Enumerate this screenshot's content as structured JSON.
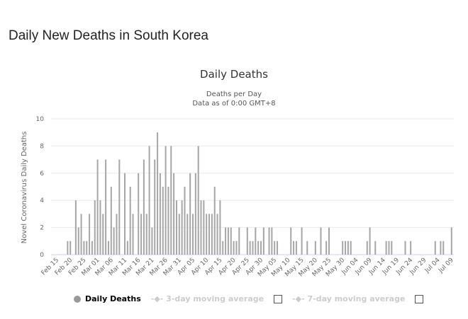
{
  "page_title": "Daily New Deaths in South Korea",
  "chart_data": {
    "type": "bar",
    "title": "Daily Deaths",
    "subtitle": [
      "Deaths per Day",
      "Data as of 0:00 GMT+8"
    ],
    "ylabel": "Novel Coronavirus Daily Deaths",
    "xlabel": "",
    "ylim": [
      0,
      10
    ],
    "yticks": [
      0,
      2,
      4,
      6,
      8,
      10
    ],
    "grid": true,
    "legend_position": "bottom",
    "bar_color": "#a6a6a6",
    "xtick_labels": [
      "Feb 15",
      "Feb 20",
      "Feb 25",
      "Mar 01",
      "Mar 06",
      "Mar 11",
      "Mar 16",
      "Mar 21",
      "Mar 26",
      "Mar 31",
      "Apr 05",
      "Apr 10",
      "Apr 15",
      "Apr 20",
      "Apr 25",
      "Apr 30",
      "May 05",
      "May 10",
      "May 15",
      "May 20",
      "May 25",
      "May 30",
      "Jun 04",
      "Jun 09",
      "Jun 14",
      "Jun 19",
      "Jun 24",
      "Jun 29",
      "Jul 04",
      "Jul 09"
    ],
    "categories": [
      "Feb 15",
      "Feb 16",
      "Feb 17",
      "Feb 18",
      "Feb 19",
      "Feb 20",
      "Feb 21",
      "Feb 22",
      "Feb 23",
      "Feb 24",
      "Feb 25",
      "Feb 26",
      "Feb 27",
      "Feb 28",
      "Feb 29",
      "Mar 01",
      "Mar 02",
      "Mar 03",
      "Mar 04",
      "Mar 05",
      "Mar 06",
      "Mar 07",
      "Mar 08",
      "Mar 09",
      "Mar 10",
      "Mar 11",
      "Mar 12",
      "Mar 13",
      "Mar 14",
      "Mar 15",
      "Mar 16",
      "Mar 17",
      "Mar 18",
      "Mar 19",
      "Mar 20",
      "Mar 21",
      "Mar 22",
      "Mar 23",
      "Mar 24",
      "Mar 25",
      "Mar 26",
      "Mar 27",
      "Mar 28",
      "Mar 29",
      "Mar 30",
      "Mar 31",
      "Apr 01",
      "Apr 02",
      "Apr 03",
      "Apr 04",
      "Apr 05",
      "Apr 06",
      "Apr 07",
      "Apr 08",
      "Apr 09",
      "Apr 10",
      "Apr 11",
      "Apr 12",
      "Apr 13",
      "Apr 14",
      "Apr 15",
      "Apr 16",
      "Apr 17",
      "Apr 18",
      "Apr 19",
      "Apr 20",
      "Apr 21",
      "Apr 22",
      "Apr 23",
      "Apr 24",
      "Apr 25",
      "Apr 26",
      "Apr 27",
      "Apr 28",
      "Apr 29",
      "Apr 30",
      "May 01",
      "May 02",
      "May 03",
      "May 04",
      "May 05",
      "May 06",
      "May 07",
      "May 08",
      "May 09",
      "May 10",
      "May 11",
      "May 12",
      "May 13",
      "May 14",
      "May 15",
      "May 16",
      "May 17",
      "May 18",
      "May 19",
      "May 20",
      "May 21",
      "May 22",
      "May 23",
      "May 24",
      "May 25",
      "May 26",
      "May 27",
      "May 28",
      "May 29",
      "May 30",
      "May 31",
      "Jun 01",
      "Jun 02",
      "Jun 03",
      "Jun 04",
      "Jun 05",
      "Jun 06",
      "Jun 07",
      "Jun 08",
      "Jun 09",
      "Jun 10",
      "Jun 11",
      "Jun 12",
      "Jun 13",
      "Jun 14",
      "Jun 15",
      "Jun 16",
      "Jun 17",
      "Jun 18",
      "Jun 19",
      "Jun 20",
      "Jun 21",
      "Jun 22",
      "Jun 23",
      "Jun 24",
      "Jun 25",
      "Jun 26",
      "Jun 27",
      "Jun 28",
      "Jun 29",
      "Jun 30",
      "Jul 01",
      "Jul 02",
      "Jul 03",
      "Jul 04",
      "Jul 05",
      "Jul 06",
      "Jul 07",
      "Jul 08",
      "Jul 09"
    ],
    "series": [
      {
        "name": "Daily Deaths",
        "values": [
          0,
          0,
          0,
          0,
          1,
          1,
          0,
          4,
          2,
          3,
          1,
          1,
          3,
          1,
          4,
          7,
          4,
          3,
          7,
          1,
          5,
          2,
          3,
          7,
          0,
          6,
          1,
          5,
          3,
          0,
          6,
          3,
          7,
          3,
          8,
          2,
          7,
          9,
          6,
          5,
          8,
          5,
          8,
          6,
          4,
          3,
          4,
          5,
          3,
          6,
          3,
          6,
          8,
          4,
          4,
          3,
          3,
          3,
          5,
          3,
          4,
          1,
          2,
          2,
          2,
          1,
          1,
          2,
          0,
          0,
          2,
          1,
          1,
          2,
          1,
          1,
          2,
          0,
          2,
          2,
          1,
          1,
          0,
          0,
          0,
          0,
          2,
          1,
          1,
          0,
          2,
          0,
          1,
          0,
          0,
          1,
          0,
          2,
          0,
          1,
          2,
          0,
          0,
          0,
          0,
          1,
          1,
          1,
          1,
          0,
          0,
          0,
          0,
          0,
          1,
          2,
          0,
          1,
          0,
          0,
          0,
          1,
          1,
          1,
          0,
          0,
          0,
          0,
          1,
          0,
          1,
          0,
          0,
          0,
          0,
          0,
          0,
          0,
          0,
          1,
          0,
          1,
          1,
          0,
          0,
          2
        ]
      }
    ],
    "legend": [
      "Daily Deaths",
      "3-day moving average",
      "7-day moving average"
    ]
  }
}
